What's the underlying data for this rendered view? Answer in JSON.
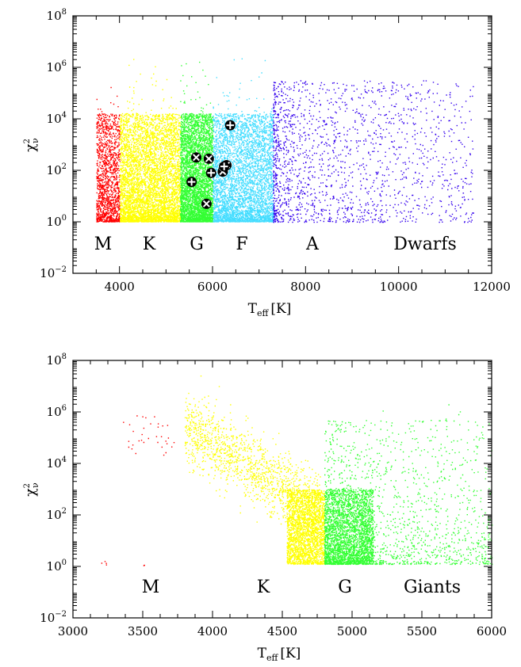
{
  "chart_data": [
    {
      "type": "scatter",
      "panel": "top",
      "xlabel": "T",
      "xlabel_sub": "eff",
      "xlabel_unit": "[K]",
      "ylabel": "χ",
      "ylabel_sup": "2",
      "ylabel_sub": "ν",
      "yscale": "log",
      "xlim": [
        3000,
        12000
      ],
      "ylim_log10": [
        -2,
        8
      ],
      "xticks": [
        4000,
        6000,
        8000,
        10000,
        12000
      ],
      "yticks_log10": [
        -2,
        0,
        2,
        4,
        6,
        8
      ],
      "series": [
        {
          "name": "M",
          "color": "#ff0000",
          "x_range": [
            3500,
            4000
          ],
          "label": "M"
        },
        {
          "name": "K",
          "color": "#ffff00",
          "x_range": [
            4000,
            5300
          ],
          "label": "K"
        },
        {
          "name": "G",
          "color": "#33ff33",
          "x_range": [
            5300,
            6000
          ],
          "label": "G"
        },
        {
          "name": "F",
          "color": "#44ddff",
          "x_range": [
            6000,
            7300
          ],
          "label": "F"
        },
        {
          "name": "A",
          "color": "#3300ee",
          "x_range": [
            7300,
            11600
          ],
          "label": "A"
        }
      ],
      "annotation": "Dwarfs",
      "highlight_points": [
        {
          "x": 5650,
          "y_log10": 2.5,
          "marker": "x"
        },
        {
          "x": 5920,
          "y_log10": 2.45,
          "marker": "x"
        },
        {
          "x": 6300,
          "y_log10": 2.2,
          "marker": "x"
        },
        {
          "x": 6220,
          "y_log10": 1.95,
          "marker": "x"
        },
        {
          "x": 5870,
          "y_log10": 0.7,
          "marker": "x"
        },
        {
          "x": 5550,
          "y_log10": 1.55,
          "marker": "+"
        },
        {
          "x": 5970,
          "y_log10": 1.9,
          "marker": "+"
        },
        {
          "x": 6250,
          "y_log10": 2.15,
          "marker": "+"
        },
        {
          "x": 6380,
          "y_log10": 3.75,
          "marker": "+"
        }
      ]
    },
    {
      "type": "scatter",
      "panel": "bottom",
      "xlabel": "T",
      "xlabel_sub": "eff",
      "xlabel_unit": "[K]",
      "ylabel": "χ",
      "ylabel_sup": "2",
      "ylabel_sub": "ν",
      "yscale": "log",
      "xlim": [
        3000,
        6000
      ],
      "ylim_log10": [
        -2,
        8
      ],
      "xticks": [
        3000,
        3500,
        4000,
        4500,
        5000,
        5500,
        6000
      ],
      "yticks_log10": [
        -2,
        0,
        2,
        4,
        6,
        8
      ],
      "series": [
        {
          "name": "M",
          "color": "#ff0000",
          "x_range": [
            3200,
            3800
          ],
          "label": "M"
        },
        {
          "name": "K",
          "color": "#ffff00",
          "x_range": [
            3800,
            4800
          ],
          "label": "K"
        },
        {
          "name": "G",
          "color": "#33ff33",
          "x_range": [
            4800,
            6000
          ],
          "label": "G"
        }
      ],
      "annotation": "Giants"
    }
  ]
}
